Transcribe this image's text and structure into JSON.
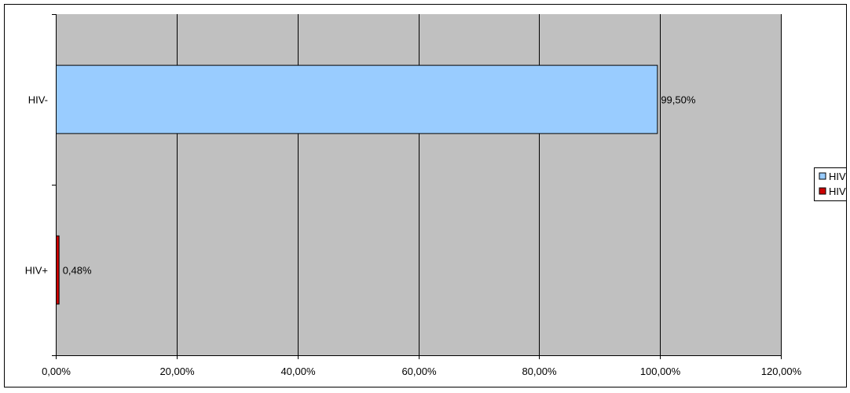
{
  "chart_data": {
    "type": "bar",
    "orientation": "horizontal",
    "categories": [
      "HIV-",
      "HIV+"
    ],
    "values": [
      99.5,
      0.48
    ],
    "data_labels": [
      "99,50%",
      "0,48%"
    ],
    "bar_colors": [
      "#99ccff",
      "#cc0000"
    ],
    "xlim": [
      0,
      120
    ],
    "x_ticks": [
      0,
      20,
      40,
      60,
      80,
      100,
      120
    ],
    "x_tick_labels": [
      "0,00%",
      "20,00%",
      "40,00%",
      "60,00%",
      "80,00%",
      "100,00%",
      "120,00%"
    ],
    "plot_background": "#c0c0c0",
    "grid": true,
    "legend": {
      "placement": "right",
      "entries": [
        {
          "label": "HIV",
          "color": "#99ccff"
        },
        {
          "label": "HIV",
          "color": "#cc0000"
        }
      ]
    }
  }
}
